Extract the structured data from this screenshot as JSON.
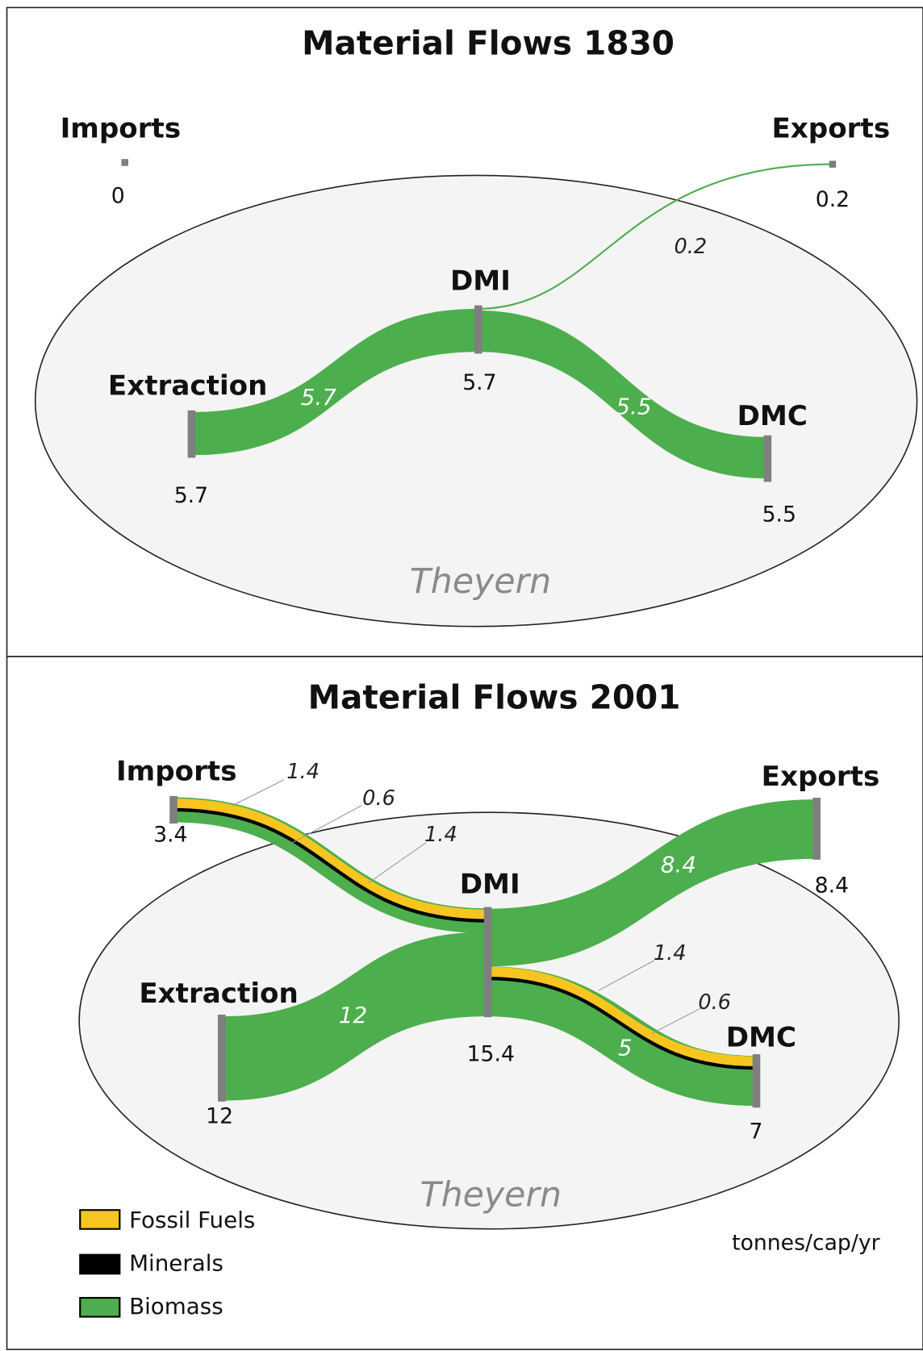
{
  "panels": [
    {
      "title": "Material Flows 1830",
      "region": "Theyern",
      "nodes": [
        {
          "label": "Imports",
          "value": 0
        },
        {
          "label": "Exports",
          "value": 0.2
        },
        {
          "label": "DMI",
          "value": 5.7
        },
        {
          "label": "Extraction",
          "value": 5.7
        },
        {
          "label": "DMC",
          "value": 5.5
        }
      ],
      "flow_labels": [
        5.7,
        5.5,
        0.2
      ]
    },
    {
      "title": "Material Flows 2001",
      "region": "Theyern",
      "nodes": [
        {
          "label": "Imports",
          "value": 3.4
        },
        {
          "label": "Exports",
          "value": 8.4
        },
        {
          "label": "DMI",
          "value": 15.4
        },
        {
          "label": "Extraction",
          "value": 12
        },
        {
          "label": "DMC",
          "value": 7
        }
      ],
      "flow_labels": [
        1.4,
        0.6,
        1.4,
        8.4,
        12,
        1.4,
        0.6,
        5
      ]
    }
  ],
  "legend": [
    "Fossil Fuels",
    "Minerals",
    "Biomass"
  ],
  "units": "tonnes/cap/yr"
}
